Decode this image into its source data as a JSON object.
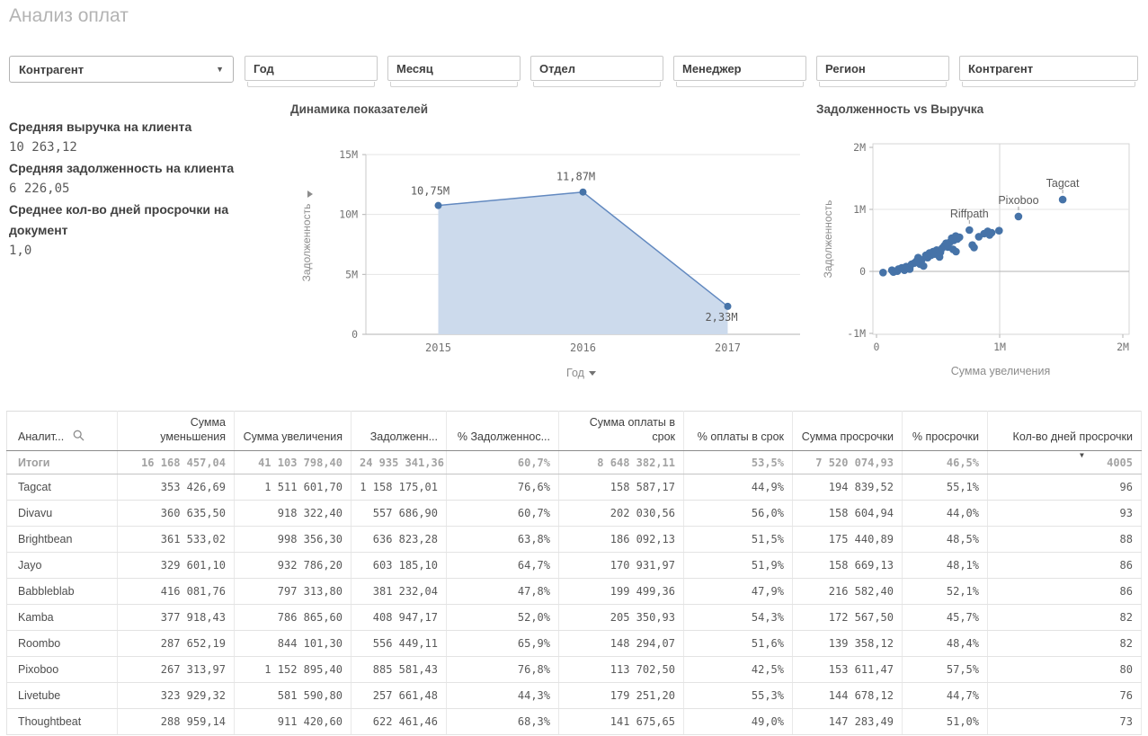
{
  "page": {
    "title": "Анализ оплат"
  },
  "filters": {
    "dropdown": {
      "label": "Контрагент"
    },
    "boxes": [
      {
        "label": "Год"
      },
      {
        "label": "Месяц"
      },
      {
        "label": "Отдел"
      },
      {
        "label": "Менеджер"
      },
      {
        "label": "Регион"
      },
      {
        "label": "Контрагент"
      }
    ]
  },
  "kpis": [
    {
      "label": "Средняя выручка на клиента",
      "value": "10 263,12"
    },
    {
      "label": "Средняя задолженность на клиента",
      "value": "6 226,05"
    },
    {
      "label": "Среднее кол-во дней просрочки на документ",
      "value": "1,0"
    }
  ],
  "chart_data": [
    {
      "type": "area",
      "title": "Динамика показателей",
      "categories": [
        "2015",
        "2016",
        "2017"
      ],
      "values": [
        10750000,
        11870000,
        2330000
      ],
      "point_labels": [
        "10,75M",
        "11,87M",
        "2,33M"
      ],
      "xlabel": "Год",
      "ylabel": "Задолженность",
      "ylim": [
        0,
        15000000
      ],
      "ytick_values": [
        0,
        5000000,
        10000000,
        15000000
      ],
      "ytick_labels": [
        "0",
        "5M",
        "10M",
        "15M"
      ],
      "grid": true,
      "line_color": "#6289c0",
      "fill_color": "#ccdaec",
      "point_color": "#4673a8"
    },
    {
      "type": "scatter",
      "title": "Задолженность vs Выручка",
      "xlabel": "Сумма увеличения",
      "ylabel": "Задолженность",
      "xlim": [
        0,
        2000000
      ],
      "ylim": [
        -1000000,
        2000000
      ],
      "xtick_labels": [
        "0",
        "1M",
        "2M"
      ],
      "ytick_labels": [
        "2M",
        "1M",
        "0",
        "-1M"
      ],
      "grid": true,
      "point_color": "#4673a8",
      "points": [
        [
          53000,
          -19000
        ],
        [
          125000,
          19000
        ],
        [
          137000,
          -10000
        ],
        [
          169000,
          4000
        ],
        [
          178000,
          38000
        ],
        [
          205000,
          58000
        ],
        [
          227000,
          19000
        ],
        [
          241000,
          77000
        ],
        [
          270000,
          38000
        ],
        [
          285000,
          116000
        ],
        [
          307000,
          135000
        ],
        [
          324000,
          164000
        ],
        [
          338000,
          222000
        ],
        [
          353000,
          116000
        ],
        [
          367000,
          184000
        ],
        [
          382000,
          87000
        ],
        [
          401000,
          261000
        ],
        [
          415000,
          222000
        ],
        [
          430000,
          295000
        ],
        [
          444000,
          261000
        ],
        [
          459000,
          319000
        ],
        [
          473000,
          280000
        ],
        [
          488000,
          343000
        ],
        [
          505000,
          256000
        ],
        [
          512000,
          232000
        ],
        [
          519000,
          309000
        ],
        [
          534000,
          377000
        ],
        [
          551000,
          415000
        ],
        [
          565000,
          454000
        ],
        [
          580000,
          391000
        ],
        [
          597000,
          473000
        ],
        [
          611000,
          536000
        ],
        [
          621000,
          357000
        ],
        [
          628000,
          502000
        ],
        [
          643000,
          570000
        ],
        [
          645000,
          319000
        ],
        [
          657000,
          522000
        ],
        [
          674000,
          551000
        ],
        [
          778000,
          425000
        ],
        [
          792000,
          386000
        ],
        [
          831000,
          560000
        ],
        [
          874000,
          609000
        ],
        [
          903000,
          647000
        ],
        [
          918000,
          589000
        ],
        [
          935000,
          623000
        ],
        [
          995000,
          657000
        ]
      ],
      "labeled_points": [
        {
          "label": "Riffpath",
          "x": 754000,
          "y": 667000
        },
        {
          "label": "Pixoboo",
          "x": 1152895,
          "y": 885581
        },
        {
          "label": "Tagcat",
          "x": 1511602,
          "y": 1158175
        }
      ]
    }
  ],
  "table": {
    "columns": [
      "Аналит...",
      "Сумма уменьшения",
      "Сумма увеличения",
      "Задолженн...",
      "% Задолженнос...",
      "Сумма оплаты в срок",
      "% оплаты в срок",
      "Сумма просрочки",
      "% просрочки",
      "Кол-во дней просрочки"
    ],
    "sorted_column": "Кол-во дней просрочки",
    "sort_direction": "desc",
    "totals": [
      "Итоги",
      "16 168 457,04",
      "41 103 798,40",
      "24 935 341,36",
      "60,7%",
      "8 648 382,11",
      "53,5%",
      "7 520 074,93",
      "46,5%",
      "4005"
    ],
    "rows": [
      [
        "Tagcat",
        "353 426,69",
        "1 511 601,70",
        "1 158 175,01",
        "76,6%",
        "158 587,17",
        "44,9%",
        "194 839,52",
        "55,1%",
        "96"
      ],
      [
        "Divavu",
        "360 635,50",
        "918 322,40",
        "557 686,90",
        "60,7%",
        "202 030,56",
        "56,0%",
        "158 604,94",
        "44,0%",
        "93"
      ],
      [
        "Brightbean",
        "361 533,02",
        "998 356,30",
        "636 823,28",
        "63,8%",
        "186 092,13",
        "51,5%",
        "175 440,89",
        "48,5%",
        "88"
      ],
      [
        "Jayo",
        "329 601,10",
        "932 786,20",
        "603 185,10",
        "64,7%",
        "170 931,97",
        "51,9%",
        "158 669,13",
        "48,1%",
        "86"
      ],
      [
        "Babbleblab",
        "416 081,76",
        "797 313,80",
        "381 232,04",
        "47,8%",
        "199 499,36",
        "47,9%",
        "216 582,40",
        "52,1%",
        "86"
      ],
      [
        "Kamba",
        "377 918,43",
        "786 865,60",
        "408 947,17",
        "52,0%",
        "205 350,93",
        "54,3%",
        "172 567,50",
        "45,7%",
        "82"
      ],
      [
        "Roombo",
        "287 652,19",
        "844 101,30",
        "556 449,11",
        "65,9%",
        "148 294,07",
        "51,6%",
        "139 358,12",
        "48,4%",
        "82"
      ],
      [
        "Pixoboo",
        "267 313,97",
        "1 152 895,40",
        "885 581,43",
        "76,8%",
        "113 702,50",
        "42,5%",
        "153 611,47",
        "57,5%",
        "80"
      ],
      [
        "Livetube",
        "323 929,32",
        "581 590,80",
        "257 661,48",
        "44,3%",
        "179 251,20",
        "55,3%",
        "144 678,12",
        "44,7%",
        "76"
      ],
      [
        "Thoughtbeat",
        "288 959,14",
        "911 420,60",
        "622 461,46",
        "68,3%",
        "141 675,65",
        "49,0%",
        "147 283,49",
        "51,0%",
        "73"
      ]
    ]
  }
}
